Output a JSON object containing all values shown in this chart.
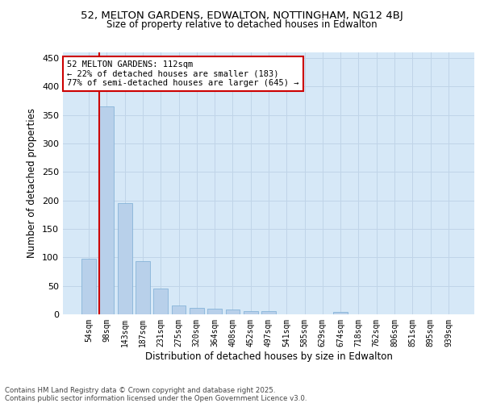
{
  "title_line1": "52, MELTON GARDENS, EDWALTON, NOTTINGHAM, NG12 4BJ",
  "title_line2": "Size of property relative to detached houses in Edwalton",
  "xlabel": "Distribution of detached houses by size in Edwalton",
  "ylabel": "Number of detached properties",
  "categories": [
    "54sqm",
    "98sqm",
    "143sqm",
    "187sqm",
    "231sqm",
    "275sqm",
    "320sqm",
    "364sqm",
    "408sqm",
    "452sqm",
    "497sqm",
    "541sqm",
    "585sqm",
    "629sqm",
    "674sqm",
    "718sqm",
    "762sqm",
    "806sqm",
    "851sqm",
    "895sqm",
    "939sqm"
  ],
  "values": [
    98,
    365,
    195,
    93,
    46,
    15,
    11,
    10,
    8,
    5,
    5,
    0,
    0,
    0,
    4,
    0,
    0,
    0,
    0,
    0,
    0
  ],
  "bar_color": "#b8d0ea",
  "bar_edge_color": "#7aadd4",
  "bar_edge_width": 0.5,
  "grid_color": "#c0d4e8",
  "background_color": "#d6e8f7",
  "vline_x": 0.6,
  "vline_color": "#cc0000",
  "annotation_text": "52 MELTON GARDENS: 112sqm\n← 22% of detached houses are smaller (183)\n77% of semi-detached houses are larger (645) →",
  "annotation_box_color": "#ffffff",
  "annotation_box_edge_color": "#cc0000",
  "footer_text": "Contains HM Land Registry data © Crown copyright and database right 2025.\nContains public sector information licensed under the Open Government Licence v3.0.",
  "ylim": [
    0,
    460
  ],
  "yticks": [
    0,
    50,
    100,
    150,
    200,
    250,
    300,
    350,
    400,
    450
  ]
}
